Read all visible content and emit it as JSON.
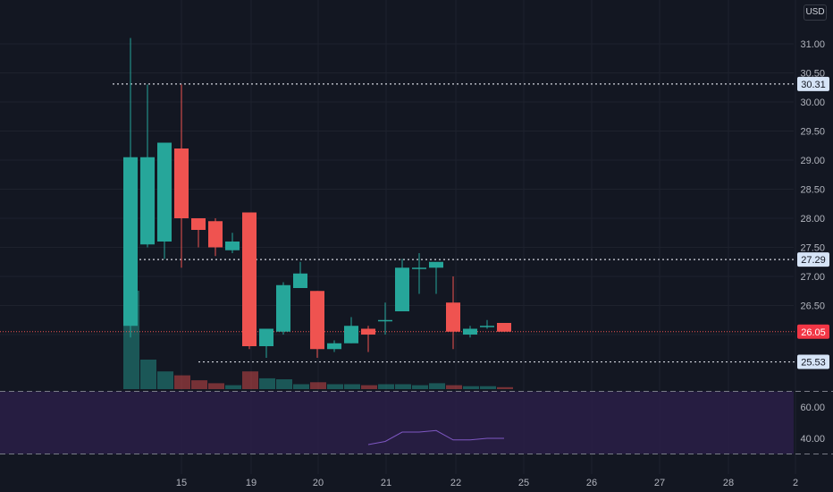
{
  "currency": "USD",
  "colors": {
    "background": "#131722",
    "up": "#26a69a",
    "down": "#ef5350",
    "grid": "#1e222d",
    "level_line": "#d1d4dc",
    "level_label_bg": "#d6e4f7",
    "level_label_text": "#131722",
    "last_price_bg": "#f23645",
    "rsi_band": "#2a1e46",
    "rsi_line": "#7e57c2"
  },
  "chart_data": {
    "type": "candlestick",
    "x_tick_labels": [
      "15",
      "19",
      "20",
      "21",
      "22",
      "25",
      "26",
      "27",
      "28",
      "2"
    ],
    "y_tick_labels": [
      "31.00",
      "30.50",
      "30.00",
      "29.50",
      "29.00",
      "28.50",
      "28.00",
      "27.50",
      "27.00",
      "26.50",
      "26.00"
    ],
    "ylim": [
      25.2,
      31.5
    ],
    "candles": [
      {
        "open": 26.15,
        "high": 31.1,
        "low": 25.95,
        "close": 29.05
      },
      {
        "open": 27.55,
        "high": 30.3,
        "low": 27.5,
        "close": 29.05
      },
      {
        "open": 27.6,
        "high": 29.3,
        "low": 27.3,
        "close": 29.3
      },
      {
        "open": 29.2,
        "high": 30.3,
        "low": 27.15,
        "close": 28.0
      },
      {
        "open": 28.0,
        "high": 28.0,
        "low": 27.5,
        "close": 27.8
      },
      {
        "open": 27.95,
        "high": 28.0,
        "low": 27.35,
        "close": 27.5
      },
      {
        "open": 27.45,
        "high": 27.75,
        "low": 27.4,
        "close": 27.6
      },
      {
        "open": 28.1,
        "high": 28.1,
        "low": 25.75,
        "close": 25.8
      },
      {
        "open": 25.8,
        "high": 26.1,
        "low": 25.6,
        "close": 26.1
      },
      {
        "open": 26.05,
        "high": 26.9,
        "low": 26.0,
        "close": 26.85
      },
      {
        "open": 26.8,
        "high": 27.25,
        "low": 26.8,
        "close": 27.05
      },
      {
        "open": 26.75,
        "high": 26.75,
        "low": 25.6,
        "close": 25.75
      },
      {
        "open": 25.75,
        "high": 25.9,
        "low": 25.7,
        "close": 25.85
      },
      {
        "open": 25.85,
        "high": 26.3,
        "low": 25.85,
        "close": 26.15
      },
      {
        "open": 26.1,
        "high": 26.15,
        "low": 25.7,
        "close": 26.0
      },
      {
        "open": 26.25,
        "high": 26.55,
        "low": 26.0,
        "close": 26.25
      },
      {
        "open": 26.4,
        "high": 27.3,
        "low": 26.4,
        "close": 27.15
      },
      {
        "open": 27.15,
        "high": 27.4,
        "low": 26.7,
        "close": 27.15
      },
      {
        "open": 27.15,
        "high": 27.2,
        "low": 26.7,
        "close": 27.25
      },
      {
        "open": 26.55,
        "high": 27.0,
        "low": 25.75,
        "close": 26.05
      },
      {
        "open": 26.0,
        "high": 26.15,
        "low": 25.95,
        "close": 26.1
      },
      {
        "open": 26.15,
        "high": 26.25,
        "low": 26.1,
        "close": 26.15
      },
      {
        "open": 26.2,
        "high": 26.2,
        "low": 26.05,
        "close": 26.05
      }
    ],
    "volume_relative": [
      1.0,
      0.3,
      0.18,
      0.14,
      0.09,
      0.06,
      0.04,
      0.18,
      0.11,
      0.1,
      0.05,
      0.07,
      0.05,
      0.05,
      0.04,
      0.05,
      0.05,
      0.04,
      0.06,
      0.04,
      0.03,
      0.03,
      0.02
    ],
    "levels": [
      {
        "value": 30.31,
        "label": "30.31"
      },
      {
        "value": 27.29,
        "label": "27.29"
      },
      {
        "value": 25.53,
        "label": "25.53"
      }
    ],
    "last_price": {
      "value": 26.05,
      "label": "26.05"
    },
    "rsi": {
      "tick_labels": [
        "60.00",
        "40.00"
      ],
      "bands": [
        70,
        30
      ],
      "ylim": [
        25,
        72
      ],
      "values": [
        null,
        null,
        null,
        null,
        null,
        null,
        null,
        null,
        null,
        null,
        null,
        null,
        null,
        null,
        36,
        38,
        44,
        44,
        45,
        39,
        39,
        40,
        40
      ]
    }
  }
}
